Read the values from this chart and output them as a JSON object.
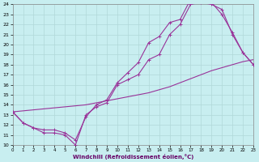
{
  "xlabel": "Windchill (Refroidissement éolien,°C)",
  "bg_color": "#c8eef0",
  "grid_color": "#b0d8d8",
  "line_color": "#993399",
  "xmin": 0,
  "xmax": 23,
  "ymin": 10,
  "ymax": 24,
  "yticks": [
    10,
    11,
    12,
    13,
    14,
    15,
    16,
    17,
    18,
    19,
    20,
    21,
    22,
    23,
    24
  ],
  "xticks": [
    0,
    1,
    2,
    3,
    4,
    5,
    6,
    7,
    8,
    9,
    10,
    11,
    12,
    13,
    14,
    15,
    16,
    17,
    18,
    19,
    20,
    21,
    22,
    23
  ],
  "line1_x": [
    0,
    1,
    2,
    3,
    4,
    5,
    6,
    7,
    8,
    9,
    10,
    11,
    12,
    13,
    14,
    15,
    16,
    17,
    18,
    19,
    20,
    21,
    22,
    23
  ],
  "line1_y": [
    13.3,
    12.2,
    11.7,
    11.2,
    11.2,
    11.0,
    10.0,
    13.0,
    13.8,
    14.2,
    16.0,
    16.5,
    17.0,
    18.5,
    19.0,
    21.0,
    22.0,
    24.0,
    24.2,
    24.0,
    23.5,
    21.0,
    19.2,
    18.0
  ],
  "line2_x": [
    0,
    1,
    2,
    3,
    4,
    5,
    6,
    7,
    8,
    9,
    10,
    11,
    12,
    13,
    14,
    15,
    16,
    17,
    18,
    19,
    20,
    21,
    22,
    23
  ],
  "line2_y": [
    13.3,
    12.2,
    11.7,
    11.5,
    11.5,
    11.2,
    10.5,
    12.8,
    14.0,
    14.5,
    16.2,
    17.2,
    18.2,
    20.2,
    20.8,
    22.2,
    22.5,
    24.5,
    24.5,
    24.2,
    23.0,
    21.2,
    19.2,
    18.0
  ],
  "line3_x": [
    0,
    1,
    2,
    3,
    4,
    5,
    6,
    7,
    8,
    9,
    10,
    11,
    12,
    13,
    14,
    15,
    16,
    17,
    18,
    19,
    20,
    21,
    22,
    23
  ],
  "line3_y": [
    13.3,
    13.4,
    13.5,
    13.6,
    13.7,
    13.8,
    13.9,
    14.0,
    14.2,
    14.4,
    14.6,
    14.8,
    15.0,
    15.2,
    15.5,
    15.8,
    16.2,
    16.6,
    17.0,
    17.4,
    17.7,
    18.0,
    18.3,
    18.5
  ]
}
